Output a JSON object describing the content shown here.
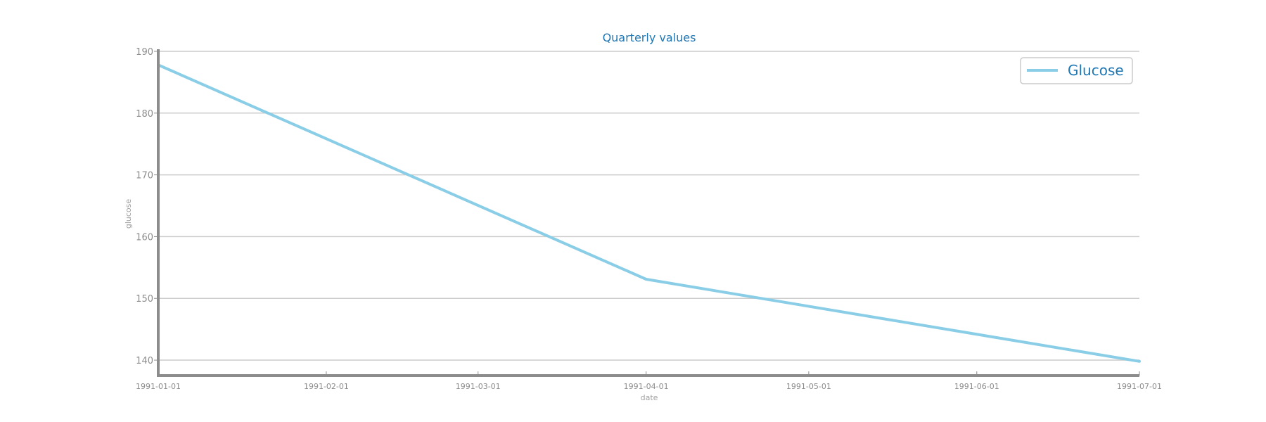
{
  "chart_data": {
    "type": "line",
    "title": "Quarterly values",
    "xlabel": "date",
    "ylabel": "glucose",
    "x": [
      "1991-01-01",
      "1991-04-01",
      "1991-07-01"
    ],
    "series": [
      {
        "name": "Glucose",
        "values": [
          187.8,
          153.1,
          139.8
        ],
        "color": "#89cde6"
      }
    ],
    "x_ticks": [
      "1991-01-01",
      "1991-02-01",
      "1991-03-01",
      "1991-04-01",
      "1991-05-01",
      "1991-06-01",
      "1991-07-01"
    ],
    "y_ticks": [
      140,
      150,
      160,
      170,
      180,
      190
    ],
    "xlim": [
      "1991-01-01",
      "1991-07-01"
    ],
    "ylim": [
      137.5,
      190
    ],
    "grid": "horizontal",
    "legend_position": "top-right",
    "colors": {
      "title": "#1f77b4",
      "grid": "#cccccc",
      "axis": "#8c8c8c",
      "tick_text": "#8c8c8c"
    }
  }
}
